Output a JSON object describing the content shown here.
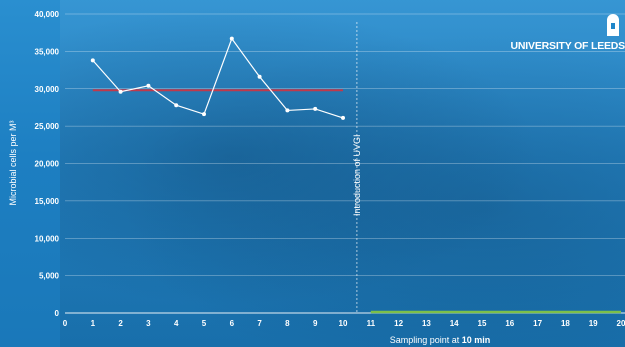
{
  "logo": {
    "text": "UNIVERSITY OF LEEDS",
    "icon": "university-tower-icon"
  },
  "colors": {
    "background": "#1f86c9",
    "series": "#ffffff",
    "reference_line": "#c0394b",
    "after_line": "#7cc04a",
    "grid": "#ffffff"
  },
  "chart_data": {
    "type": "line",
    "xlabel_prefix": "Sampling point at ",
    "xlabel_bold": "10 min",
    "ylabel": "Microbial cells per M³",
    "xlim": [
      0,
      20
    ],
    "ylim": [
      0,
      40000
    ],
    "x_ticks": [
      "0",
      "1",
      "2",
      "3",
      "4",
      "5",
      "6",
      "7",
      "8",
      "9",
      "10",
      "11",
      "12",
      "13",
      "14",
      "15",
      "16",
      "17",
      "18",
      "19",
      "20"
    ],
    "y_ticks": [
      "0",
      "5,000",
      "10,000",
      "15,000",
      "20,000",
      "25,000",
      "30,000",
      "35,000",
      "40,000"
    ],
    "y_tick_values": [
      0,
      5000,
      10000,
      15000,
      20000,
      25000,
      30000,
      35000,
      40000
    ],
    "series": [
      {
        "x": [
          1,
          2,
          3,
          4,
          5,
          6,
          7,
          8,
          9,
          10
        ],
        "values": [
          33800,
          29600,
          30400,
          27800,
          26600,
          36700,
          31600,
          27100,
          27300,
          26100
        ]
      }
    ],
    "reference_line": {
      "x": [
        1,
        10
      ],
      "value": 29800
    },
    "after_line": {
      "x": [
        11,
        20
      ],
      "value": 0
    },
    "annotation": {
      "text": "Introduction of UVGI",
      "x": 10.5
    }
  }
}
